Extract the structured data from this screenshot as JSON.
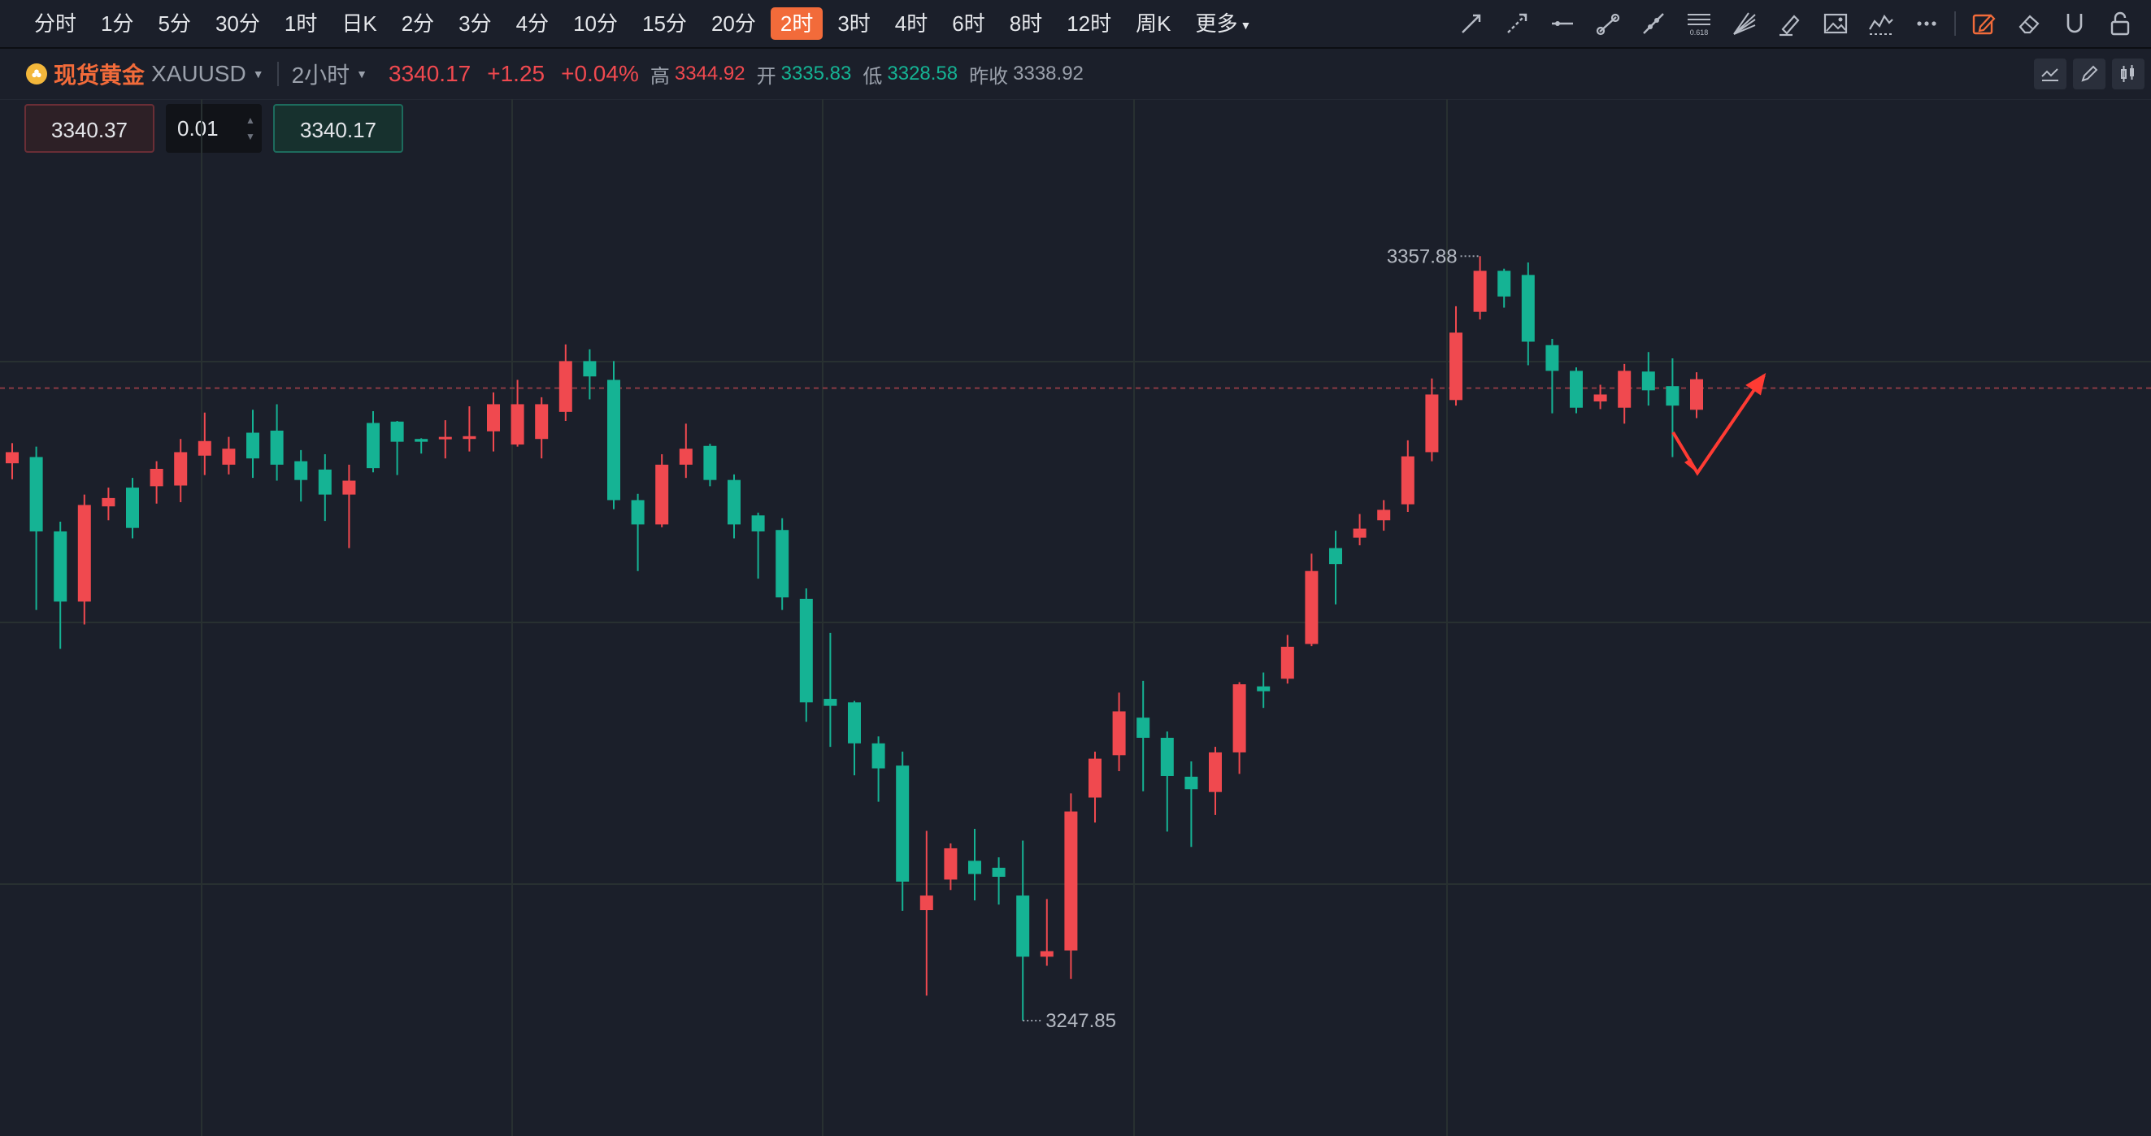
{
  "toolbar": {
    "timeframes": [
      {
        "label": "分时"
      },
      {
        "label": "1分"
      },
      {
        "label": "5分"
      },
      {
        "label": "30分"
      },
      {
        "label": "1时"
      },
      {
        "label": "日K"
      },
      {
        "label": "2分"
      },
      {
        "label": "3分"
      },
      {
        "label": "4分"
      },
      {
        "label": "10分"
      },
      {
        "label": "15分"
      },
      {
        "label": "20分"
      },
      {
        "label": "2时",
        "active": true
      },
      {
        "label": "3时"
      },
      {
        "label": "4时"
      },
      {
        "label": "6时"
      },
      {
        "label": "8时"
      },
      {
        "label": "12时"
      },
      {
        "label": "周K"
      },
      {
        "label": "更多"
      }
    ],
    "drawing_tools": [
      "arrow-line-icon",
      "ray-line-icon",
      "horizontal-line-icon",
      "segment-line-icon",
      "extended-line-icon",
      "fibonacci-icon",
      "fan-icon",
      "marker-pen-icon",
      "image-icon",
      "wave-icon",
      "more-icon",
      "draw-edit-icon",
      "eraser-icon",
      "magnet-icon",
      "lock-icon"
    ]
  },
  "symbol": {
    "name": "现货黄金",
    "code": "XAUUSD",
    "period": "2小时",
    "last": "3340.17",
    "change": "+1.25",
    "change_pct": "+0.04%",
    "high_label": "高",
    "high": "3344.92",
    "open_label": "开",
    "open": "3335.83",
    "low_label": "低",
    "low": "3328.58",
    "prev_close_label": "昨收",
    "prev_close": "3338.92"
  },
  "order": {
    "sell_price": "3340.37",
    "quantity": "0.01",
    "buy_price": "3340.17"
  },
  "colors": {
    "up": "#f0494f",
    "down": "#15b394",
    "accent": "#f26b3a",
    "background": "#1b1f2a",
    "grid": "#283031"
  },
  "chart_data": {
    "type": "candlestick",
    "y_range": [
      3231.3,
      3380.5
    ],
    "price_line": 3338.92,
    "annotations": [
      {
        "text": "3357.88",
        "type": "high_marker"
      },
      {
        "text": "3247.85",
        "type": "low_marker"
      }
    ],
    "candles": [
      [
        3328.1,
        3329.7,
        3325.8,
        3331.0
      ],
      [
        3329.0,
        3318.3,
        3307.0,
        3330.5
      ],
      [
        3318.3,
        3308.2,
        3301.4,
        3319.7
      ],
      [
        3308.2,
        3322.1,
        3304.9,
        3323.6
      ],
      [
        3321.9,
        3323.1,
        3319.9,
        3324.6
      ],
      [
        3324.6,
        3318.8,
        3317.3,
        3326.0
      ],
      [
        3324.8,
        3327.3,
        3322.3,
        3328.4
      ],
      [
        3324.9,
        3329.7,
        3322.5,
        3331.6
      ],
      [
        3329.2,
        3331.3,
        3326.4,
        3335.4
      ],
      [
        3327.9,
        3330.2,
        3326.5,
        3331.9
      ],
      [
        3332.5,
        3328.8,
        3326.0,
        3335.8
      ],
      [
        3332.8,
        3327.9,
        3325.6,
        3336.6
      ],
      [
        3328.4,
        3325.7,
        3322.6,
        3330.0
      ],
      [
        3327.2,
        3323.6,
        3319.8,
        3329.4
      ],
      [
        3323.6,
        3325.6,
        3315.9,
        3327.9
      ],
      [
        3333.9,
        3327.4,
        3326.8,
        3335.6
      ],
      [
        3334.1,
        3331.2,
        3326.4,
        3334.2
      ],
      [
        3331.6,
        3331.2,
        3329.5,
        3331.7
      ],
      [
        3331.6,
        3331.9,
        3328.8,
        3334.3
      ],
      [
        3331.6,
        3332.0,
        3329.8,
        3336.3
      ],
      [
        3332.7,
        3336.6,
        3329.8,
        3338.3
      ],
      [
        3330.8,
        3336.6,
        3330.5,
        3340.1
      ],
      [
        3331.6,
        3336.6,
        3328.8,
        3337.6
      ],
      [
        3335.5,
        3342.8,
        3334.2,
        3345.2
      ],
      [
        3342.8,
        3340.6,
        3337.3,
        3344.5
      ],
      [
        3340.1,
        3322.8,
        3321.5,
        3342.8
      ],
      [
        3322.8,
        3319.3,
        3312.6,
        3323.7
      ],
      [
        3319.3,
        3327.9,
        3318.9,
        3329.4
      ],
      [
        3327.9,
        3330.2,
        3326.0,
        3333.8
      ],
      [
        3330.6,
        3325.7,
        3324.8,
        3330.9
      ],
      [
        3325.7,
        3319.3,
        3317.3,
        3326.5
      ],
      [
        3320.6,
        3318.3,
        3311.5,
        3321.0
      ],
      [
        3318.5,
        3308.8,
        3307.0,
        3320.2
      ],
      [
        3308.6,
        3293.7,
        3290.9,
        3310.1
      ],
      [
        3294.2,
        3293.2,
        3287.3,
        3303.7
      ],
      [
        3293.7,
        3287.8,
        3283.2,
        3293.9
      ],
      [
        3287.8,
        3284.2,
        3279.4,
        3288.8
      ],
      [
        3284.6,
        3267.9,
        3263.7,
        3286.6
      ],
      [
        3263.8,
        3265.9,
        3251.5,
        3275.2
      ],
      [
        3268.2,
        3272.7,
        3266.7,
        3273.4
      ],
      [
        3270.9,
        3269.0,
        3265.2,
        3275.5
      ],
      [
        3269.9,
        3268.6,
        3264.6,
        3271.4
      ],
      [
        3265.9,
        3257.1,
        3247.9,
        3273.8
      ],
      [
        3257.1,
        3257.9,
        3255.8,
        3265.4
      ],
      [
        3258.0,
        3278.0,
        3253.9,
        3280.6
      ],
      [
        3280.0,
        3285.6,
        3276.4,
        3286.6
      ],
      [
        3286.1,
        3292.4,
        3283.8,
        3295.1
      ],
      [
        3291.5,
        3288.6,
        3280.9,
        3296.8
      ],
      [
        3288.6,
        3283.1,
        3275.1,
        3289.5
      ],
      [
        3283.0,
        3281.2,
        3272.9,
        3285.2
      ],
      [
        3280.8,
        3286.5,
        3277.5,
        3287.3
      ],
      [
        3286.5,
        3296.3,
        3283.4,
        3296.6
      ],
      [
        3296.0,
        3295.3,
        3292.9,
        3298.0
      ],
      [
        3297.1,
        3301.7,
        3296.4,
        3303.4
      ],
      [
        3302.1,
        3312.6,
        3301.8,
        3315.1
      ],
      [
        3315.9,
        3313.6,
        3307.8,
        3318.4
      ],
      [
        3317.4,
        3318.7,
        3316.3,
        3320.8
      ],
      [
        3319.9,
        3321.4,
        3318.4,
        3322.8
      ],
      [
        3322.2,
        3329.1,
        3321.1,
        3331.4
      ],
      [
        3329.7,
        3338.0,
        3328.4,
        3340.3
      ],
      [
        3337.2,
        3346.9,
        3336.4,
        3350.7
      ],
      [
        3349.9,
        3355.8,
        3348.8,
        3357.9
      ],
      [
        3355.8,
        3352.1,
        3350.5,
        3356.1
      ],
      [
        3355.2,
        3345.6,
        3342.2,
        3357.0
      ],
      [
        3345.1,
        3341.4,
        3335.3,
        3346.0
      ],
      [
        3341.4,
        3336.1,
        3335.3,
        3341.9
      ],
      [
        3337.0,
        3338.0,
        3335.9,
        3339.4
      ],
      [
        3336.1,
        3341.4,
        3333.8,
        3342.4
      ],
      [
        3341.3,
        3338.6,
        3336.4,
        3344.1
      ],
      [
        3339.2,
        3336.4,
        3329.0,
        3343.2
      ],
      [
        3335.8,
        3340.2,
        3334.6,
        3341.2
      ]
    ]
  }
}
